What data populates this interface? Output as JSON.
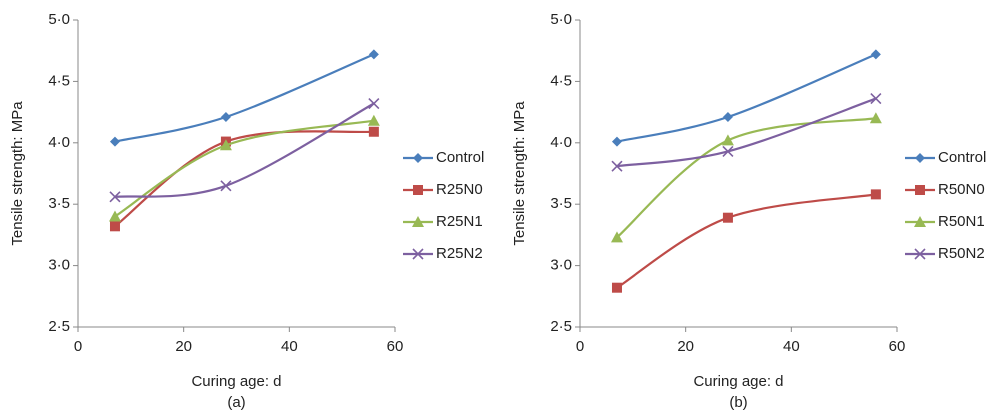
{
  "chart_data": [
    {
      "type": "line",
      "caption": "(a)",
      "x_label": "Curing age: d",
      "y_label": "Tensile strength: MPa",
      "x": [
        7,
        28,
        56
      ],
      "xlim": [
        0,
        60
      ],
      "xticks": [
        0,
        20,
        40,
        60
      ],
      "ylim": [
        2.5,
        5.0
      ],
      "yticks": [
        {
          "value": 2.5,
          "label": "2·5"
        },
        {
          "value": 3.0,
          "label": "3·0"
        },
        {
          "value": 3.5,
          "label": "3·5"
        },
        {
          "value": 4.0,
          "label": "4·0"
        },
        {
          "value": 4.5,
          "label": "4·5"
        },
        {
          "value": 5.0,
          "label": "5·0"
        }
      ],
      "legend": "right",
      "series": [
        {
          "name": "Control",
          "color": "#4a7ebb",
          "marker": "diamond",
          "values": [
            4.01,
            4.21,
            4.72
          ]
        },
        {
          "name": "R25N0",
          "color": "#be4b48",
          "marker": "square",
          "values": [
            3.32,
            4.01,
            4.09
          ]
        },
        {
          "name": "R25N1",
          "color": "#98b954",
          "marker": "triangle",
          "values": [
            3.4,
            3.98,
            4.18
          ]
        },
        {
          "name": "R25N2",
          "color": "#7d60a0",
          "marker": "cross",
          "values": [
            3.56,
            3.65,
            4.32
          ]
        }
      ]
    },
    {
      "type": "line",
      "caption": "(b)",
      "x_label": "Curing age: d",
      "y_label": "Tensile strength: MPa",
      "x": [
        7,
        28,
        56
      ],
      "xlim": [
        0,
        60
      ],
      "xticks": [
        0,
        20,
        40,
        60
      ],
      "ylim": [
        2.5,
        5.0
      ],
      "yticks": [
        {
          "value": 2.5,
          "label": "2·5"
        },
        {
          "value": 3.0,
          "label": "3·0"
        },
        {
          "value": 3.5,
          "label": "3·5"
        },
        {
          "value": 4.0,
          "label": "4·0"
        },
        {
          "value": 4.5,
          "label": "4·5"
        },
        {
          "value": 5.0,
          "label": "5·0"
        }
      ],
      "legend": "right",
      "series": [
        {
          "name": "Control",
          "color": "#4a7ebb",
          "marker": "diamond",
          "values": [
            4.01,
            4.21,
            4.72
          ]
        },
        {
          "name": "R50N0",
          "color": "#be4b48",
          "marker": "square",
          "values": [
            2.82,
            3.39,
            3.58
          ]
        },
        {
          "name": "R50N1",
          "color": "#98b954",
          "marker": "triangle",
          "values": [
            3.23,
            4.02,
            4.2
          ]
        },
        {
          "name": "R50N2",
          "color": "#7d60a0",
          "marker": "cross",
          "values": [
            3.81,
            3.93,
            4.36
          ]
        }
      ]
    }
  ]
}
